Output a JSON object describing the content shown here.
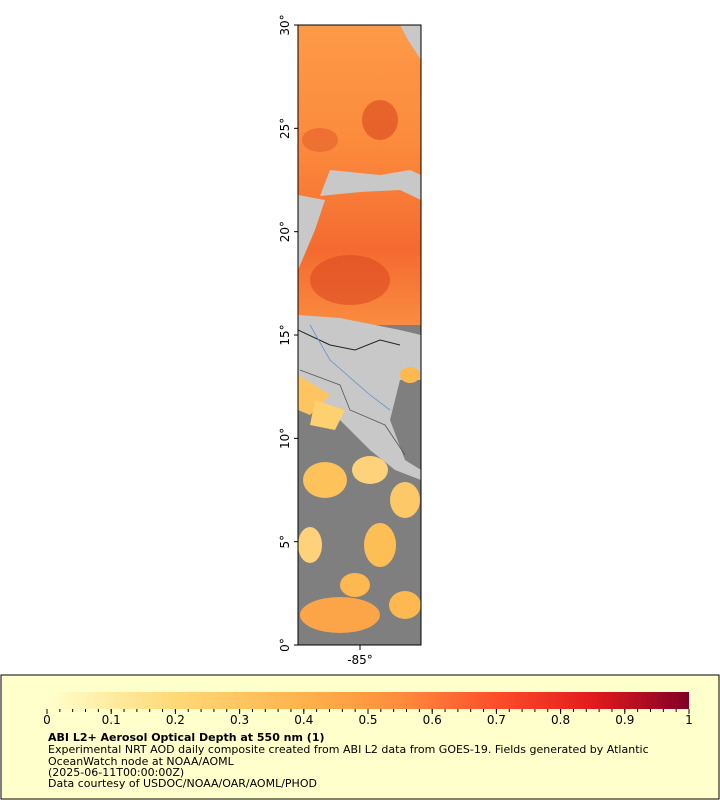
{
  "map": {
    "lat_ticks": [
      {
        "value": 0,
        "label": "0°"
      },
      {
        "value": 5,
        "label": "5°"
      },
      {
        "value": 10,
        "label": "10°"
      },
      {
        "value": 15,
        "label": "15°"
      },
      {
        "value": 20,
        "label": "20°"
      },
      {
        "value": 25,
        "label": "25°"
      },
      {
        "value": 30,
        "label": "30°"
      }
    ],
    "lon_ticks": [
      {
        "value": -85,
        "label": "-85°"
      }
    ]
  },
  "colorbar": {
    "ticks": [
      0,
      0.1,
      0.2,
      0.3,
      0.4,
      0.5,
      0.6,
      0.7,
      0.8,
      0.9,
      1
    ]
  },
  "footer": {
    "title": "ABI L2+ Aerosol Optical Depth at 550 nm (1)",
    "description": "Experimental NRT AOD daily composite created from ABI L2 data from GOES-19. Fields generated by Atlantic OceanWatch node at NOAA/AOML",
    "time": "(2025-06-11T00:00:00Z)",
    "credit": "Data courtesy of USDOC/NOAA/OAR/AOML/PHOD"
  }
}
